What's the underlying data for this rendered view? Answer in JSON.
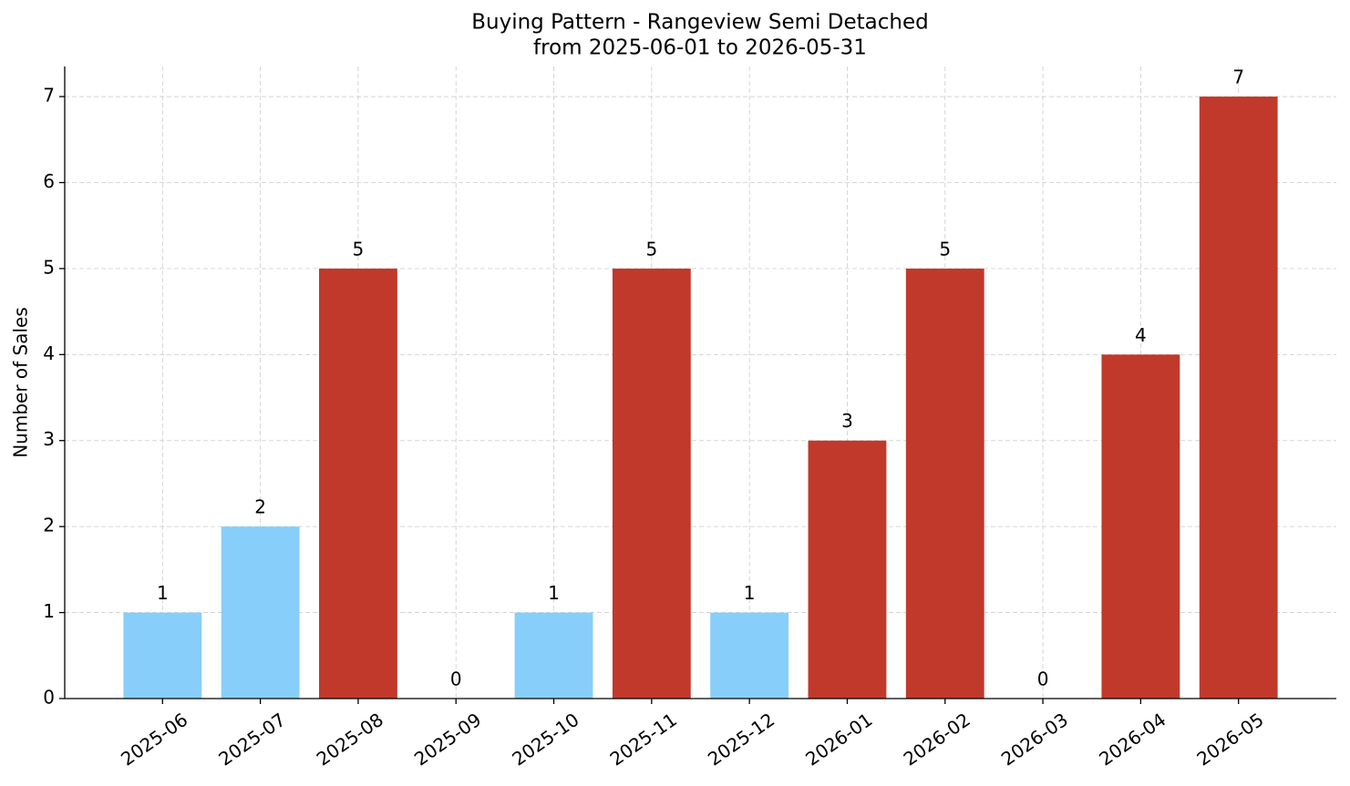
{
  "chart_data": {
    "type": "bar",
    "title": "Buying Pattern - Rangeview Semi Detached",
    "subtitle": "from 2025-06-01 to 2026-05-31",
    "y_label": "Number of Sales",
    "categories": [
      "2025-06",
      "2025-07",
      "2025-08",
      "2025-09",
      "2025-10",
      "2025-11",
      "2025-12",
      "2026-01",
      "2026-02",
      "2026-03",
      "2026-04",
      "2026-05"
    ],
    "values": [
      1,
      2,
      5,
      0,
      1,
      5,
      1,
      3,
      5,
      0,
      4,
      7
    ],
    "colors": [
      "#87cefa",
      "#87cefa",
      "#c0392b",
      "#87cefa",
      "#87cefa",
      "#c0392b",
      "#87cefa",
      "#c0392b",
      "#c0392b",
      "#87cefa",
      "#c0392b",
      "#c0392b"
    ],
    "ylim": [
      0,
      7.35
    ],
    "yticks": [
      0,
      1,
      2,
      3,
      4,
      5,
      6,
      7
    ],
    "grid": true
  }
}
